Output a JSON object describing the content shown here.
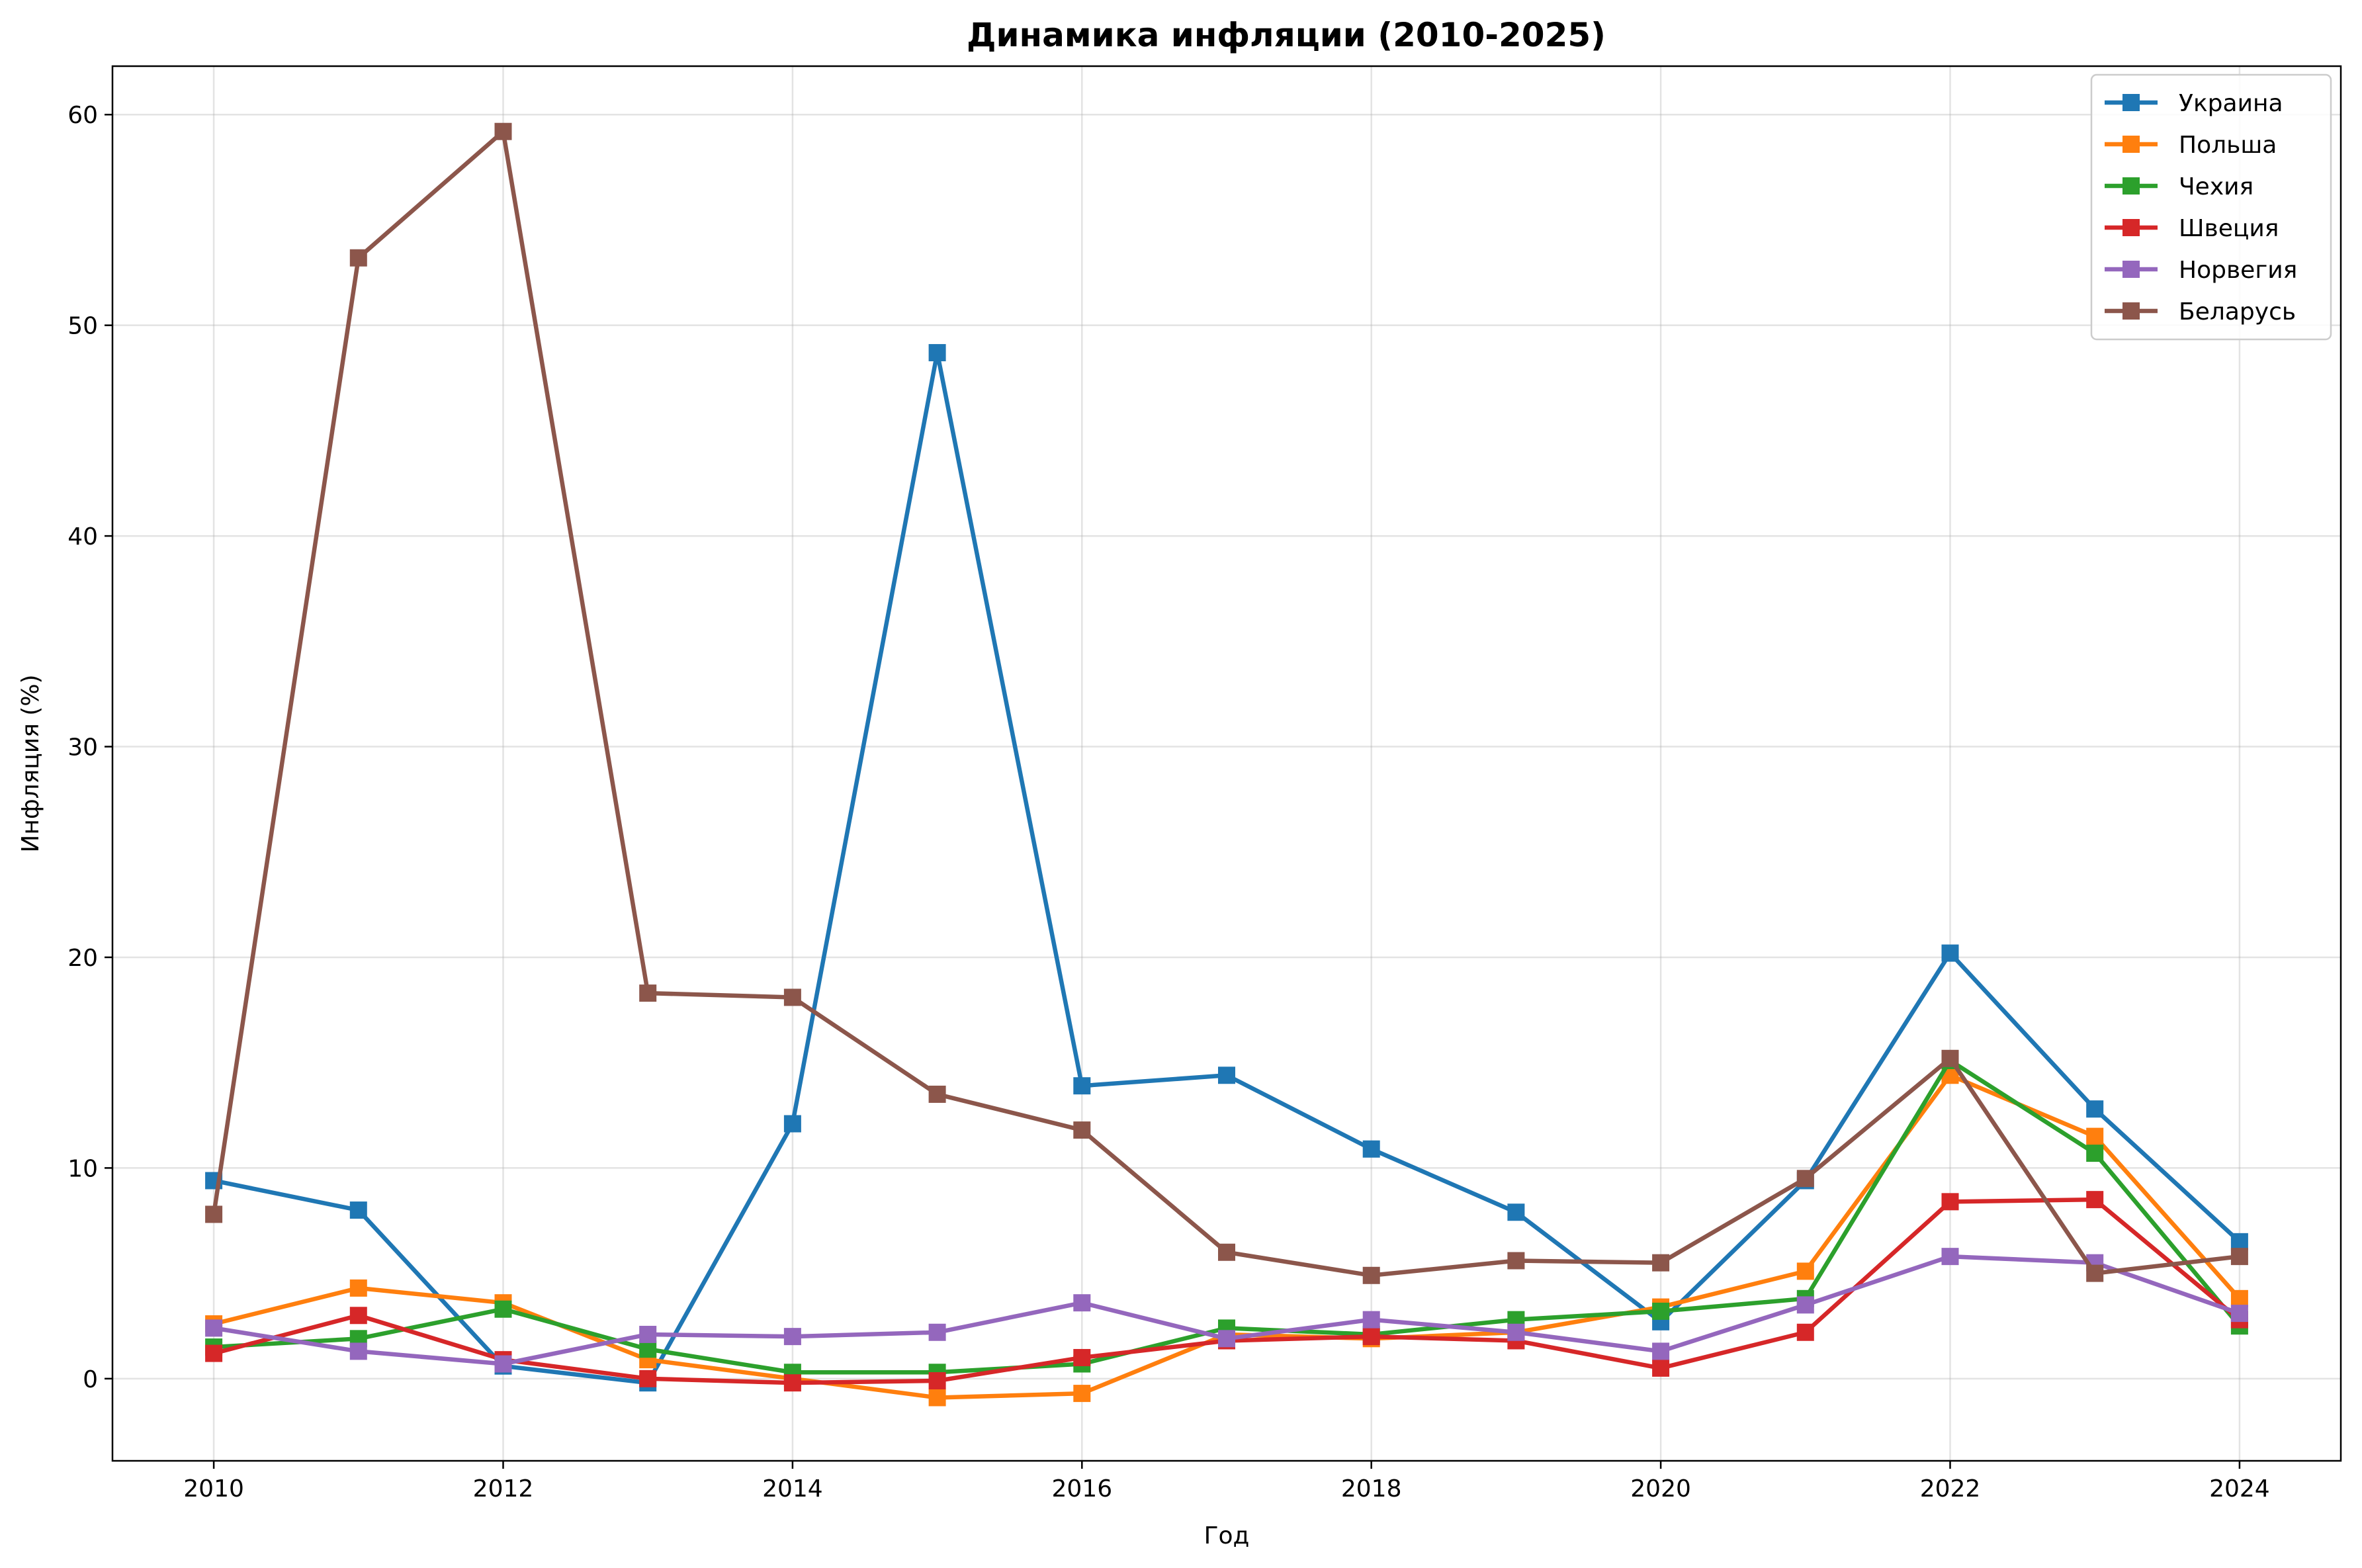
{
  "chart_data": {
    "type": "line",
    "title": "Динамика инфляции (2010-2025)",
    "xlabel": "Год",
    "ylabel": "Инфляция (%)",
    "x": [
      2010,
      2011,
      2012,
      2013,
      2014,
      2015,
      2016,
      2017,
      2018,
      2019,
      2020,
      2021,
      2022,
      2023,
      2024
    ],
    "xlim": [
      2009.3,
      2024.7
    ],
    "ylim": [
      -3.9,
      62.3
    ],
    "xticks": [
      2010,
      2012,
      2014,
      2016,
      2018,
      2020,
      2022,
      2024
    ],
    "yticks": [
      0,
      10,
      20,
      30,
      40,
      50,
      60
    ],
    "grid": true,
    "legend_position": "top-right",
    "marker": "square",
    "series": [
      {
        "name": "Украина",
        "color": "#1f77b4",
        "values": [
          9.4,
          8.0,
          0.6,
          -0.2,
          12.1,
          48.7,
          13.9,
          14.4,
          10.9,
          7.9,
          2.7,
          9.4,
          20.2,
          12.8,
          6.5
        ]
      },
      {
        "name": "Польша",
        "color": "#ff7f0e",
        "values": [
          2.6,
          4.3,
          3.6,
          0.9,
          0.0,
          -0.9,
          -0.7,
          2.1,
          1.9,
          2.2,
          3.4,
          5.1,
          14.4,
          11.5,
          3.8
        ]
      },
      {
        "name": "Чехия",
        "color": "#2ca02c",
        "values": [
          1.5,
          1.9,
          3.3,
          1.4,
          0.3,
          0.3,
          0.7,
          2.4,
          2.1,
          2.8,
          3.2,
          3.8,
          15.1,
          10.7,
          2.5
        ]
      },
      {
        "name": "Швеция",
        "color": "#d62728",
        "values": [
          1.2,
          3.0,
          0.9,
          0.0,
          -0.2,
          -0.1,
          1.0,
          1.8,
          2.0,
          1.8,
          0.5,
          2.2,
          8.4,
          8.5,
          2.8
        ]
      },
      {
        "name": "Норвегия",
        "color": "#9467bd",
        "values": [
          2.4,
          1.3,
          0.7,
          2.1,
          2.0,
          2.2,
          3.6,
          1.9,
          2.8,
          2.2,
          1.3,
          3.5,
          5.8,
          5.5,
          3.1
        ]
      },
      {
        "name": "Беларусь",
        "color": "#8c564b",
        "values": [
          7.8,
          53.2,
          59.2,
          18.3,
          18.1,
          13.5,
          11.8,
          6.0,
          4.9,
          5.6,
          5.5,
          9.5,
          15.2,
          5.0,
          5.8
        ]
      }
    ]
  }
}
